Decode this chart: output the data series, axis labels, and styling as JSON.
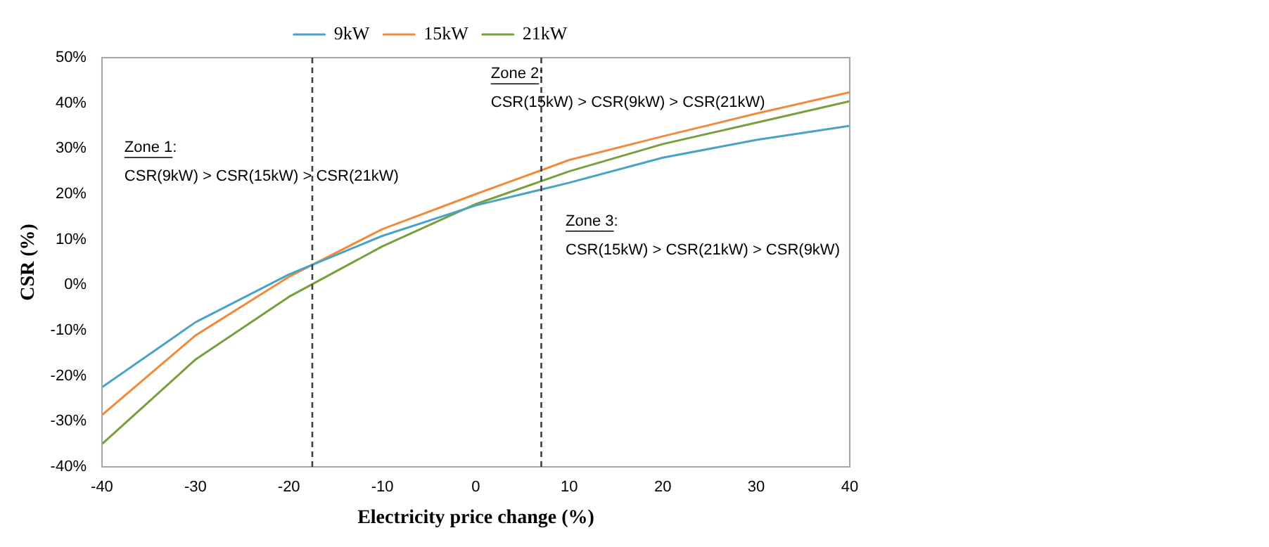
{
  "chart_data": {
    "type": "line",
    "xlabel": "Electricity price change (%)",
    "ylabel": "CSR (%)",
    "x": [
      -40,
      -30,
      -20,
      -10,
      0,
      10,
      20,
      30,
      40
    ],
    "series": [
      {
        "name": "9kW",
        "color": "#4aa3c4",
        "values": [
          -22.5,
          -8.2,
          2.3,
          10.8,
          17.5,
          22.5,
          28,
          31.9,
          35
        ]
      },
      {
        "name": "15kW",
        "color": "#f08a3c",
        "values": [
          -28.6,
          -11.1,
          1.8,
          12.3,
          20,
          27.5,
          32.7,
          37.7,
          42.4
        ]
      },
      {
        "name": "21kW",
        "color": "#77a03c",
        "values": [
          -35,
          -16.4,
          -2.6,
          8.5,
          17.8,
          25,
          31,
          35.7,
          40.4
        ]
      }
    ],
    "xlim": [
      -40,
      40
    ],
    "xticks": [
      -40,
      -30,
      -20,
      -10,
      0,
      10,
      20,
      30,
      40
    ],
    "ylim": [
      -40,
      50
    ],
    "yticks": [
      {
        "value": -40,
        "label": "-40%"
      },
      {
        "value": -30,
        "label": "-30%"
      },
      {
        "value": -20,
        "label": "-20%"
      },
      {
        "value": -10,
        "label": "-10%"
      },
      {
        "value": 0,
        "label": "0%"
      },
      {
        "value": 10,
        "label": "10%"
      },
      {
        "value": 20,
        "label": "20%"
      },
      {
        "value": 30,
        "label": "30%"
      },
      {
        "value": 40,
        "label": "40%"
      },
      {
        "value": 50,
        "label": "50%"
      }
    ],
    "ref_lines": [
      {
        "axis": "x",
        "value": -17.5,
        "color": "#404040",
        "line_style": "dashed"
      },
      {
        "axis": "x",
        "value": 7,
        "color": "#404040",
        "line_style": "dashed"
      }
    ],
    "annotations": [
      "Zone 1:",
      "CSR(9kW) > CSR(15kW) > CSR(21kW)",
      "Zone 2:",
      "CSR(15kW) > CSR(9kW) > CSR(21kW)",
      "Zone 3:",
      "CSR(15kW) > CSR(21kW) > CSR(9kW)"
    ],
    "grid": false,
    "legend": "top",
    "marker": "none",
    "line_style": "solid"
  }
}
